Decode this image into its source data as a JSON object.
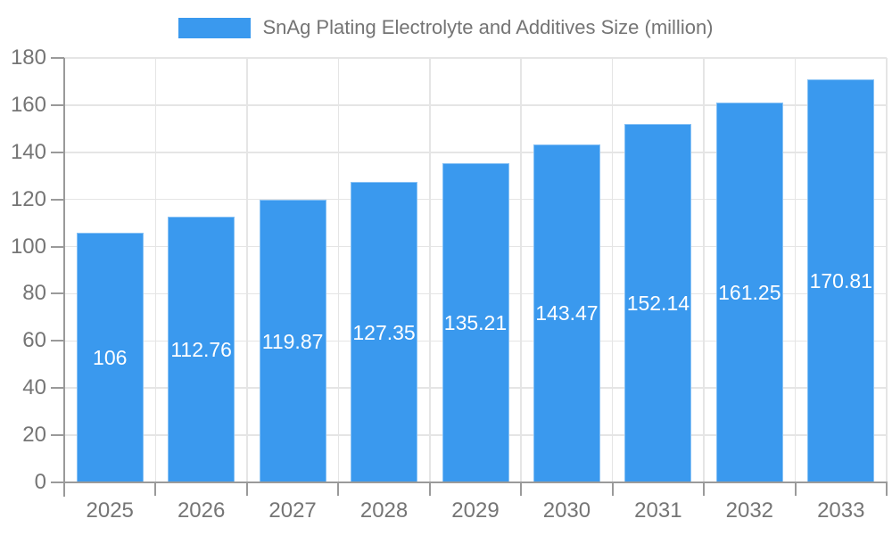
{
  "legend": {
    "label": "SnAg Plating Electrolyte and Additives Size (million)"
  },
  "chart_data": {
    "type": "bar",
    "title": "SnAg Plating Electrolyte and Additives Size (million)",
    "legend_entries": [
      "SnAg Plating Electrolyte and Additives Size (million)"
    ],
    "legend_position": "top-center",
    "categories": [
      "2025",
      "2026",
      "2027",
      "2028",
      "2029",
      "2030",
      "2031",
      "2032",
      "2033"
    ],
    "values": [
      106,
      112.76,
      119.87,
      127.35,
      135.21,
      143.47,
      152.14,
      161.25,
      170.81
    ],
    "value_labels": [
      "106",
      "112.76",
      "119.87",
      "127.35",
      "135.21",
      "143.47",
      "152.14",
      "161.25",
      "170.81"
    ],
    "xlabel": "",
    "ylabel": "",
    "ylim": [
      0,
      180
    ],
    "yticks": [
      0,
      20,
      40,
      60,
      80,
      100,
      120,
      140,
      160,
      180
    ],
    "grid": true,
    "bar_color": "#3a99ee",
    "value_label_color": "#ffffff",
    "axis_label_color": "#757575"
  }
}
